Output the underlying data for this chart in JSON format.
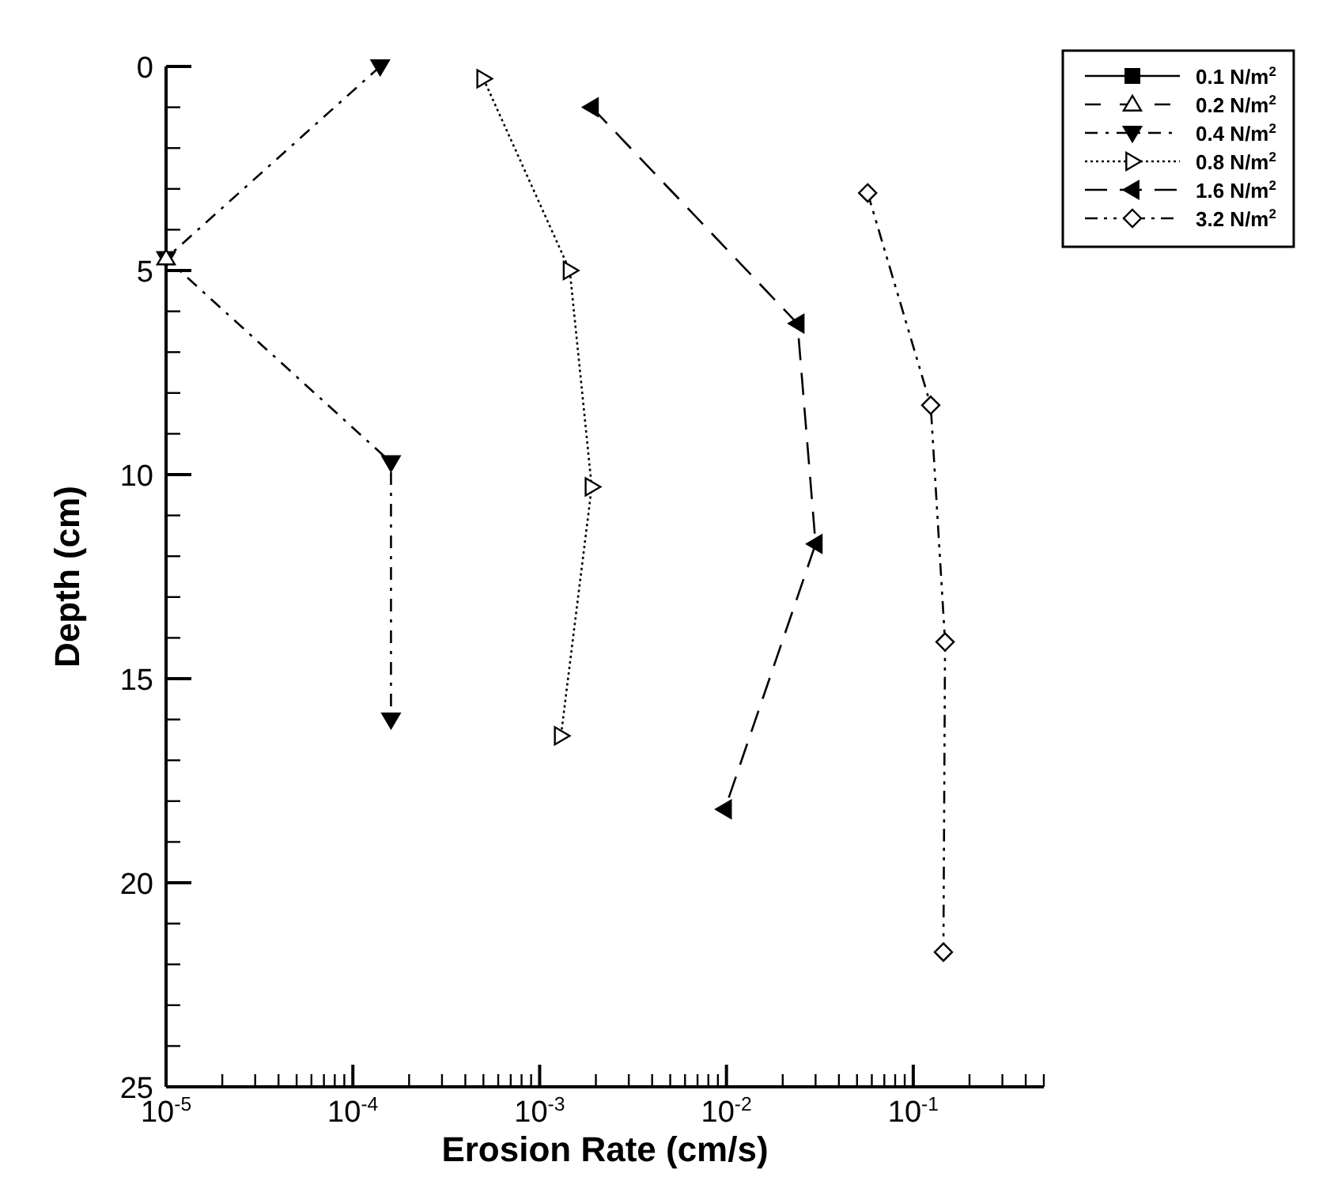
{
  "chart_data": {
    "type": "line",
    "xlabel": "Erosion Rate (cm/s)",
    "ylabel": "Depth (cm)",
    "log": "x",
    "xlim": [
      1e-05,
      0.5
    ],
    "ylim": [
      25,
      0
    ],
    "xticks": [
      {
        "value": 1e-05,
        "label": "10$^{-5}$"
      },
      {
        "value": 2e-05,
        "label": null
      },
      {
        "value": 3e-05,
        "label": null
      },
      {
        "value": 4e-05,
        "label": null
      },
      {
        "value": 5e-05,
        "label": null
      },
      {
        "value": 6e-05,
        "label": null
      },
      {
        "value": 7e-05,
        "label": null
      },
      {
        "value": 8e-05,
        "label": null
      },
      {
        "value": 9e-05,
        "label": null
      },
      {
        "value": 0.0001,
        "label": "10$^{-4}$"
      },
      {
        "value": 0.0002,
        "label": null
      },
      {
        "value": 0.0003,
        "label": null
      },
      {
        "value": 0.0004,
        "label": null
      },
      {
        "value": 0.0005,
        "label": null
      },
      {
        "value": 0.0006,
        "label": null
      },
      {
        "value": 0.0007,
        "label": null
      },
      {
        "value": 0.0008,
        "label": null
      },
      {
        "value": 0.0009,
        "label": null
      },
      {
        "value": 0.001,
        "label": "10$^{-3}$"
      },
      {
        "value": 0.002,
        "label": null
      },
      {
        "value": 0.003,
        "label": null
      },
      {
        "value": 0.004,
        "label": null
      },
      {
        "value": 0.005,
        "label": null
      },
      {
        "value": 0.006,
        "label": null
      },
      {
        "value": 0.007,
        "label": null
      },
      {
        "value": 0.008,
        "label": null
      },
      {
        "value": 0.009,
        "label": null
      },
      {
        "value": 0.01,
        "label": "10$^{-2}$"
      },
      {
        "value": 0.02,
        "label": null
      },
      {
        "value": 0.03,
        "label": null
      },
      {
        "value": 0.04,
        "label": null
      },
      {
        "value": 0.05,
        "label": null
      },
      {
        "value": 0.06,
        "label": null
      },
      {
        "value": 0.07,
        "label": null
      },
      {
        "value": 0.08,
        "label": null
      },
      {
        "value": 0.09,
        "label": null
      },
      {
        "value": 0.1,
        "label": "10$^{-1}$"
      },
      {
        "value": 0.2,
        "label": null
      },
      {
        "value": 0.3,
        "label": null
      },
      {
        "value": 0.4,
        "label": null
      },
      {
        "value": 0.5,
        "label": null
      }
    ],
    "yticks": [
      0,
      {
        "value": 1,
        "label": null
      },
      {
        "value": 2,
        "label": null
      },
      {
        "value": 3,
        "label": null
      },
      {
        "value": 4,
        "label": null
      },
      5,
      {
        "value": 6,
        "label": null
      },
      {
        "value": 7,
        "label": null
      },
      {
        "value": 8,
        "label": null
      },
      {
        "value": 9,
        "label": null
      },
      10,
      {
        "value": 11,
        "label": null
      },
      {
        "value": 12,
        "label": null
      },
      {
        "value": 13,
        "label": null
      },
      {
        "value": 14,
        "label": null
      },
      15,
      {
        "value": 16,
        "label": null
      },
      {
        "value": 17,
        "label": null
      },
      {
        "value": 18,
        "label": null
      },
      {
        "value": 19,
        "label": null
      },
      20,
      {
        "value": 21,
        "label": null
      },
      {
        "value": 22,
        "label": null
      },
      {
        "value": 23,
        "label": null
      },
      {
        "value": 24,
        "label": null
      },
      25
    ],
    "grid": false,
    "legend": "top right",
    "series": [
      {
        "name": "0.1 N/m$^{2}$",
        "color": "#000000",
        "marker": "square",
        "line_style": "solid",
        "values": [
          null
        ]
      },
      {
        "name": "0.2 N/m$^{2}$",
        "color": "#000000",
        "marker": "triangle",
        "line_style": "dashed",
        "x": [
          1e-05
        ],
        "values": [
          4.7
        ]
      },
      {
        "name": "0.4 N/m$^{2}$",
        "color": "#000000",
        "marker": "triangle-down",
        "line_style": "dashdot",
        "x": [
          0.00014,
          1e-05,
          0.00016,
          0.00016
        ],
        "values": [
          0,
          4.7,
          9.7,
          16
        ]
      },
      {
        "name": "0.8 N/m$^{2}$",
        "color": "#000000",
        "marker": "triangle-right",
        "line_style": "dotted",
        "x": [
          0.0005,
          0.00145,
          0.0019,
          0.0013
        ],
        "values": [
          0.3,
          5,
          10.3,
          16.4
        ]
      },
      {
        "name": "1.6 N/m$^{2}$",
        "color": "#000000",
        "marker": "triangle-left",
        "line_style": "longdash",
        "x": [
          0.0019,
          0.024,
          0.03,
          0.0098
        ],
        "values": [
          1,
          6.3,
          11.7,
          18.2
        ]
      },
      {
        "name": "3.2 N/m$^{2}$",
        "color": "#000000",
        "marker": "diamond",
        "line_style": "dashdotdot",
        "x": [
          0.057,
          0.124,
          0.148,
          0.145
        ],
        "values": [
          3.1,
          8.3,
          14.1,
          21.7
        ]
      }
    ]
  }
}
